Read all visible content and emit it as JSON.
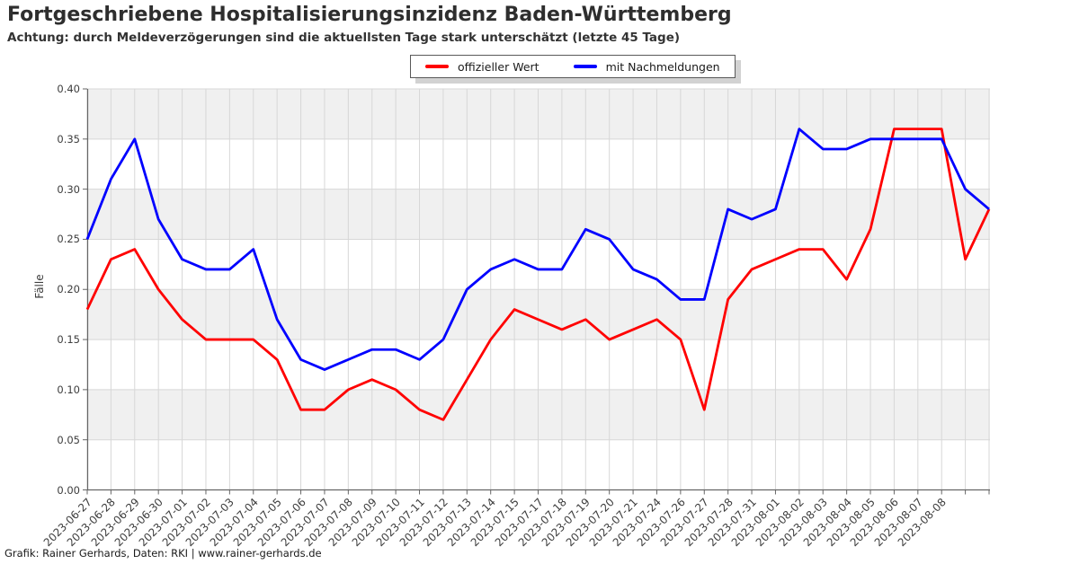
{
  "header": {
    "title": "Fortgeschriebene Hospitalisierungsinzidenz Baden-Württemberg",
    "subtitle": "Achtung: durch Meldeverzögerungen sind die aktuellsten Tage stark unterschätzt (letzte 45 Tage)"
  },
  "legend": {
    "items": [
      {
        "label": "offizieller Wert",
        "color": "#ff0000"
      },
      {
        "label": "mit Nachmeldungen",
        "color": "#0000ff"
      }
    ]
  },
  "footer": {
    "credit": "Grafik: Rainer Gerhards, Daten: RKI | www.rainer-gerhards.de"
  },
  "chart_data": {
    "type": "line",
    "title": "Fortgeschriebene Hospitalisierungsinzidenz Baden-Württemberg",
    "xlabel": "",
    "ylabel": "Fälle",
    "ylim": [
      0,
      0.4
    ],
    "ytick_step": 0.05,
    "grid": true,
    "banded_background": true,
    "legend_position": "top-center",
    "x": [
      "2023-06-27",
      "2023-06-28",
      "2023-06-29",
      "2023-06-30",
      "2023-07-01",
      "2023-07-02",
      "2023-07-03",
      "2023-07-04",
      "2023-07-05",
      "2023-07-06",
      "2023-07-07",
      "2023-07-08",
      "2023-07-09",
      "2023-07-10",
      "2023-07-11",
      "2023-07-12",
      "2023-07-13",
      "2023-07-14",
      "2023-07-15",
      "2023-07-17",
      "2023-07-18",
      "2023-07-19",
      "2023-07-20",
      "2023-07-21",
      "2023-07-24",
      "2023-07-26",
      "2023-07-27",
      "2023-07-28",
      "2023-07-31",
      "2023-08-01",
      "2023-08-02",
      "2023-08-03",
      "2023-08-04",
      "2023-08-05",
      "2023-08-06",
      "2023-08-07",
      "2023-08-08",
      "",
      ""
    ],
    "x_tick_label_count": 37,
    "series": [
      {
        "name": "offizieller Wert",
        "color": "#ff0000",
        "values": [
          0.18,
          0.23,
          0.24,
          0.2,
          0.17,
          0.15,
          0.15,
          0.15,
          0.13,
          0.08,
          0.08,
          0.1,
          0.11,
          0.1,
          0.08,
          0.07,
          0.11,
          0.15,
          0.18,
          0.17,
          0.16,
          0.17,
          0.15,
          0.16,
          0.17,
          0.15,
          0.08,
          0.19,
          0.22,
          0.23,
          0.24,
          0.24,
          0.21,
          0.26,
          0.36,
          0.36,
          0.36,
          0.23,
          0.28
        ]
      },
      {
        "name": "mit Nachmeldungen",
        "color": "#0000ff",
        "values": [
          0.25,
          0.31,
          0.35,
          0.27,
          0.23,
          0.22,
          0.22,
          0.24,
          0.17,
          0.13,
          0.12,
          0.13,
          0.14,
          0.14,
          0.13,
          0.15,
          0.2,
          0.22,
          0.23,
          0.22,
          0.22,
          0.26,
          0.25,
          0.22,
          0.21,
          0.19,
          0.19,
          0.28,
          0.27,
          0.28,
          0.36,
          0.34,
          0.34,
          0.35,
          0.35,
          0.35,
          0.35,
          0.3,
          0.28
        ]
      }
    ],
    "style": {
      "band_color": "#f0f0f0",
      "grid_color": "#d7d7d7",
      "spine_color": "#666666",
      "line_width": 2.8
    }
  }
}
